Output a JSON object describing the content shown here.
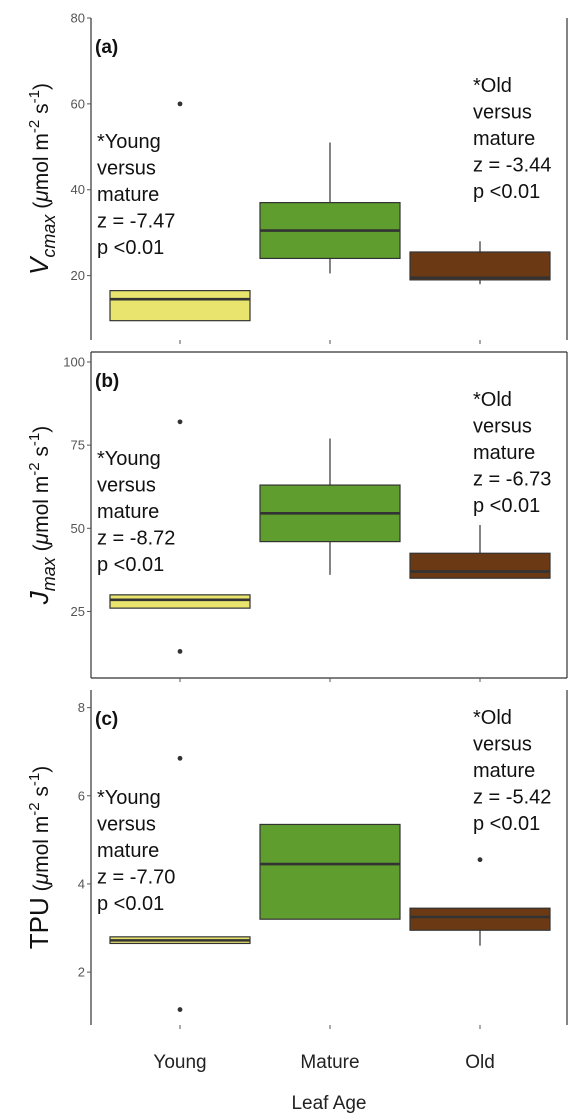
{
  "chart_data": {
    "type": "box",
    "x_title": "Leaf Age",
    "categories": [
      "Young",
      "Mature",
      "Old"
    ],
    "colors": {
      "Young": "#e8e46e",
      "Mature": "#5f9d2f",
      "Old": "#6b3a14"
    },
    "panels": [
      {
        "label": "(a)",
        "ylabel": {
          "base": "V",
          "sub": "cmax",
          "unit_pre": " (",
          "mu": "μ",
          "unit_mid": "mol m",
          "exp1": "-2",
          "unit_s": " s",
          "exp2": "-1",
          "unit_post": ")"
        },
        "ylim": [
          5,
          80
        ],
        "yticks": [
          20,
          40,
          60,
          80
        ],
        "boxes": [
          {
            "category": "Young",
            "q1": 9.5,
            "median": 14.5,
            "q3": 16.5,
            "lower_whisker": 9.5,
            "upper_whisker": 16.5,
            "outliers": [
              60
            ]
          },
          {
            "category": "Mature",
            "q1": 24,
            "median": 30.5,
            "q3": 37,
            "lower_whisker": 20.5,
            "upper_whisker": 51,
            "outliers": []
          },
          {
            "category": "Old",
            "q1": 19,
            "median": 19.5,
            "q3": 25.5,
            "lower_whisker": 18,
            "upper_whisker": 28,
            "outliers": []
          }
        ],
        "annotations": [
          {
            "lines": [
              "*Young",
              "versus",
              "mature",
              "z = -7.47",
              "p <0.01"
            ]
          },
          {
            "lines": [
              "*Old",
              "versus",
              "mature",
              "z = -3.44",
              "p <0.01"
            ]
          }
        ]
      },
      {
        "label": "(b)",
        "ylabel": {
          "base": "J",
          "sub": "max",
          "unit_pre": " (",
          "mu": "μ",
          "unit_mid": "mol m",
          "exp1": "-2",
          "unit_s": " s",
          "exp2": "-1",
          "unit_post": ")"
        },
        "ylim": [
          5,
          103
        ],
        "yticks": [
          25,
          50,
          75,
          100
        ],
        "boxes": [
          {
            "category": "Young",
            "q1": 26,
            "median": 28.5,
            "q3": 30,
            "lower_whisker": 26,
            "upper_whisker": 30,
            "outliers": [
              82,
              13
            ]
          },
          {
            "category": "Mature",
            "q1": 46,
            "median": 54.5,
            "q3": 63,
            "lower_whisker": 36,
            "upper_whisker": 77,
            "outliers": []
          },
          {
            "category": "Old",
            "q1": 35,
            "median": 37,
            "q3": 42.5,
            "lower_whisker": 35,
            "upper_whisker": 51,
            "outliers": []
          }
        ],
        "annotations": [
          {
            "lines": [
              "*Young",
              "versus",
              "mature",
              "z = -8.72",
              "p <0.01"
            ]
          },
          {
            "lines": [
              "*Old",
              "versus",
              "mature",
              "z = -6.73",
              "p <0.01"
            ]
          }
        ]
      },
      {
        "label": "(c)",
        "ylabel": {
          "base": "TPU",
          "sub": "",
          "unit_pre": " (",
          "mu": "μ",
          "unit_mid": "mol m",
          "exp1": "-2",
          "unit_s": " s",
          "exp2": "-1",
          "unit_post": ")"
        },
        "ylim": [
          0.8,
          8.4
        ],
        "yticks": [
          2,
          4,
          6,
          8
        ],
        "boxes": [
          {
            "category": "Young",
            "q1": 2.65,
            "median": 2.72,
            "q3": 2.8,
            "lower_whisker": 2.65,
            "upper_whisker": 2.8,
            "outliers": [
              6.85,
              1.15
            ]
          },
          {
            "category": "Mature",
            "q1": 3.2,
            "median": 4.45,
            "q3": 5.35,
            "lower_whisker": 3.2,
            "upper_whisker": 5.35,
            "outliers": []
          },
          {
            "category": "Old",
            "q1": 2.95,
            "median": 3.25,
            "q3": 3.45,
            "lower_whisker": 2.6,
            "upper_whisker": 3.45,
            "outliers": [
              4.55
            ]
          }
        ],
        "annotations": [
          {
            "lines": [
              "*Young",
              "versus",
              "mature",
              "z = -7.70",
              "p <0.01"
            ]
          },
          {
            "lines": [
              "*Old",
              "versus",
              "mature",
              "z = -5.42",
              "p <0.01"
            ]
          }
        ]
      }
    ]
  }
}
